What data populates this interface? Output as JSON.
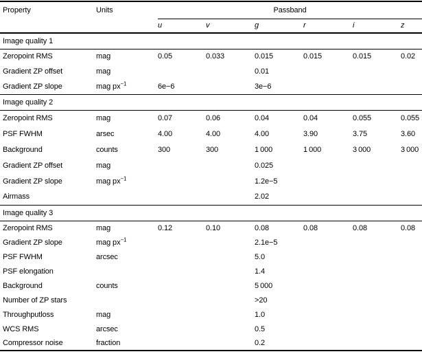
{
  "colors": {
    "text": "#000000",
    "background": "#ffffff",
    "rule": "#000000"
  },
  "table": {
    "header": {
      "property": "Property",
      "units": "Units",
      "passband": "Passband",
      "bands": [
        "u",
        "v",
        "g",
        "r",
        "i",
        "z"
      ]
    },
    "sections": [
      {
        "title": "Image quality 1",
        "rows": [
          {
            "property": "Zeropoint RMS",
            "units": "mag",
            "values": [
              "0.05",
              "0.033",
              "0.015",
              "0.015",
              "0.015",
              "0.02"
            ]
          },
          {
            "property": "Gradient ZP offset",
            "units": "mag",
            "values": [
              "",
              "",
              "0.01",
              "",
              "",
              ""
            ]
          },
          {
            "property": "Gradient ZP slope",
            "units": "mag px",
            "units_sup": "−1",
            "values": [
              "6e−6",
              "",
              "3e−6",
              "",
              "",
              ""
            ]
          }
        ]
      },
      {
        "title": "Image quality 2",
        "rows": [
          {
            "property": "Zeropoint RMS",
            "units": "mag",
            "values": [
              "0.07",
              "0.06",
              "0.04",
              "0.04",
              "0.055",
              "0.055"
            ]
          },
          {
            "property": "PSF FWHM",
            "units": "arsec",
            "values": [
              "4.00",
              "4.00",
              "4.00",
              "3.90",
              "3.75",
              "3.60"
            ]
          },
          {
            "property": "Background",
            "units": "counts",
            "values": [
              "300",
              "300",
              "1 000",
              "1 000",
              "3 000",
              "3 000"
            ]
          },
          {
            "property": "Gradient ZP offset",
            "units": "mag",
            "values": [
              "",
              "",
              "0.025",
              "",
              "",
              ""
            ]
          },
          {
            "property": "Gradient ZP slope",
            "units": "mag px",
            "units_sup": "−1",
            "values": [
              "",
              "",
              "1.2e−5",
              "",
              "",
              ""
            ]
          },
          {
            "property": "Airmass",
            "units": "",
            "values": [
              "",
              "",
              "2.02",
              "",
              "",
              ""
            ]
          }
        ]
      },
      {
        "title": "Image quality 3",
        "rows": [
          {
            "property": "Zeropoint RMS",
            "units": "mag",
            "values": [
              "0.12",
              "0.10",
              "0.08",
              "0.08",
              "0.08",
              "0.08"
            ]
          },
          {
            "property": "Gradient ZP slope",
            "units": "mag px",
            "units_sup": "−1",
            "values": [
              "",
              "",
              "2.1e−5",
              "",
              "",
              ""
            ]
          },
          {
            "property": "PSF FWHM",
            "units": "arcsec",
            "values": [
              "",
              "",
              "5.0",
              "",
              "",
              ""
            ]
          },
          {
            "property": "PSF elongation",
            "units": "",
            "values": [
              "",
              "",
              "1.4",
              "",
              "",
              ""
            ]
          },
          {
            "property": "Background",
            "units": "counts",
            "values": [
              "",
              "",
              "5 000",
              "",
              "",
              ""
            ]
          },
          {
            "property": "Number of ZP stars",
            "units": "",
            "values": [
              "",
              "",
              ">20",
              "",
              "",
              ""
            ]
          },
          {
            "property": "Throughputloss",
            "units": "mag",
            "values": [
              "",
              "",
              "1.0",
              "",
              "",
              ""
            ]
          },
          {
            "property": "WCS RMS",
            "units": "arcsec",
            "values": [
              "",
              "",
              "0.5",
              "",
              "",
              ""
            ]
          },
          {
            "property": "Compressor noise",
            "units": "fraction",
            "values": [
              "",
              "",
              "0.2",
              "",
              "",
              ""
            ]
          }
        ]
      }
    ]
  }
}
